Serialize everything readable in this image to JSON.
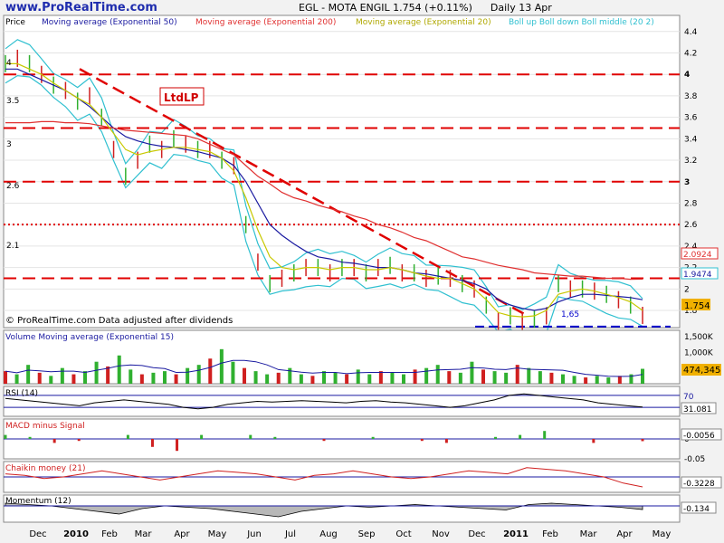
{
  "header": {
    "site": "www.ProRealTime.com",
    "title": "EGL - MOTA ENGIL   1.754 (+0.11%)",
    "period": "Daily  13 Apr"
  },
  "main_panel": {
    "legend": [
      {
        "label": "Price",
        "color": "#000000"
      },
      {
        "label": "Moving average (Exponential 50)",
        "color": "#1a1aa0"
      },
      {
        "label": "Moving average (Exponential 200)",
        "color": "#e03030"
      },
      {
        "label": "Moving average (Exponential 20)",
        "color": "#c8c800"
      },
      {
        "label": "Boll up Boll down Boll middle (20 2)",
        "color": "#30c0d0"
      }
    ],
    "watermark": "© ProRealTime.com  Data adjusted after dividends",
    "annotation": "LtdLP",
    "support_label": "1,65",
    "left_levels": [
      "4",
      "3.5",
      "3",
      "2.6",
      "2.1"
    ],
    "right_badges": {
      "ema200": "2.0924",
      "boll_up": "1.9474",
      "price": "1.754"
    }
  },
  "volume_panel": {
    "label": "Volume  Moving average (Exponential 15)",
    "badge": "474,345"
  },
  "rsi_panel": {
    "label": "RSI (14)",
    "level": "70",
    "badge": "31.081"
  },
  "macd_panel": {
    "label": "MACD minus Signal",
    "badge": "-0.0056"
  },
  "chaikin_panel": {
    "label": "Chaikin money (21)",
    "badge": "-0.3228"
  },
  "momentum_panel": {
    "label": "Momentum (12)",
    "badge": "-0.134"
  },
  "colors": {
    "background": "#f2f2f2",
    "level_line": "#e00000",
    "ema50": "#1a1aa0",
    "ema200": "#e03030",
    "ema20": "#c8c800",
    "bollinger": "#30c0d0",
    "support": "#0000cc",
    "volume_up": "#30b030",
    "volume_down": "#d02020",
    "price_badge": "#f0b000"
  },
  "chart_data": [
    {
      "type": "line",
      "name": "price",
      "ylim": [
        1.64,
        4.55
      ],
      "yticks": [
        "4.4",
        "4.2",
        "4",
        "3.8",
        "3.6",
        "3.4",
        "3.2",
        "3",
        "2.8",
        "2.6",
        "2.4",
        "2.2",
        "2",
        "1.8"
      ],
      "xticks": [
        "Dec",
        "2010",
        "Feb",
        "Mar",
        "Apr",
        "May",
        "Jun",
        "Jul",
        "Aug",
        "Sep",
        "Oct",
        "Nov",
        "Dec",
        "2011",
        "Feb",
        "Mar",
        "Apr",
        "May"
      ],
      "horizontal_levels": [
        4.0,
        3.5,
        3.0,
        2.6,
        2.1
      ],
      "support_level": 1.65,
      "trendline": [
        {
          "date": "Jan 2010",
          "value": 4.05
        },
        {
          "date": "Dec 2010",
          "value": 1.75
        }
      ],
      "series": [
        {
          "name": "Price",
          "values": [
            4.1,
            4.15,
            4.1,
            4.0,
            3.9,
            3.85,
            3.75,
            3.8,
            3.6,
            3.3,
            3.05,
            3.2,
            3.35,
            3.3,
            3.4,
            3.35,
            3.3,
            3.3,
            3.2,
            3.15,
            2.6,
            2.25,
            2.05,
            2.1,
            2.15,
            2.2,
            2.2,
            2.15,
            2.2,
            2.2,
            2.15,
            2.2,
            2.22,
            2.15,
            2.15,
            2.1,
            2.12,
            2.1,
            2.05,
            2.0,
            1.85,
            1.7,
            1.75,
            1.7,
            1.72,
            1.75,
            2.05,
            2.0,
            2.0,
            1.98,
            1.95,
            1.9,
            1.85,
            1.754
          ]
        },
        {
          "name": "Moving average (Exponential 50)",
          "values": [
            4.05,
            4.05,
            4.0,
            3.95,
            3.9,
            3.85,
            3.78,
            3.7,
            3.6,
            3.5,
            3.42,
            3.38,
            3.35,
            3.33,
            3.32,
            3.3,
            3.28,
            3.25,
            3.22,
            3.15,
            3.0,
            2.8,
            2.6,
            2.5,
            2.42,
            2.35,
            2.3,
            2.28,
            2.25,
            2.24,
            2.22,
            2.2,
            2.2,
            2.18,
            2.15,
            2.14,
            2.12,
            2.1,
            2.08,
            2.05,
            2.0,
            1.9,
            1.85,
            1.82,
            1.8,
            1.82,
            1.88,
            1.92,
            1.95,
            1.95,
            1.94,
            1.93,
            1.92,
            1.9
          ]
        },
        {
          "name": "Moving average (Exponential 200)",
          "values": [
            3.55,
            3.55,
            3.55,
            3.56,
            3.56,
            3.55,
            3.55,
            3.54,
            3.52,
            3.5,
            3.48,
            3.47,
            3.46,
            3.45,
            3.44,
            3.43,
            3.4,
            3.35,
            3.3,
            3.25,
            3.15,
            3.05,
            2.98,
            2.9,
            2.85,
            2.82,
            2.78,
            2.75,
            2.72,
            2.68,
            2.65,
            2.6,
            2.57,
            2.53,
            2.48,
            2.45,
            2.4,
            2.35,
            2.3,
            2.28,
            2.25,
            2.22,
            2.2,
            2.18,
            2.15,
            2.14,
            2.13,
            2.12,
            2.12,
            2.11,
            2.1,
            2.1,
            2.09,
            2.0924
          ]
        },
        {
          "name": "Moving average (Exponential 20)",
          "values": [
            4.1,
            4.1,
            4.05,
            4.0,
            3.92,
            3.85,
            3.78,
            3.72,
            3.6,
            3.45,
            3.3,
            3.25,
            3.28,
            3.3,
            3.32,
            3.32,
            3.3,
            3.28,
            3.22,
            3.1,
            2.85,
            2.55,
            2.3,
            2.2,
            2.18,
            2.2,
            2.2,
            2.18,
            2.2,
            2.2,
            2.18,
            2.18,
            2.2,
            2.18,
            2.15,
            2.12,
            2.1,
            2.1,
            2.05,
            2.0,
            1.9,
            1.78,
            1.75,
            1.74,
            1.75,
            1.8,
            1.95,
            1.98,
            2.0,
            1.98,
            1.95,
            1.92,
            1.88,
            1.8
          ]
        }
      ]
    },
    {
      "type": "bar",
      "name": "volume",
      "ylim": [
        0,
        1700000
      ],
      "yticks": [
        "1,500K",
        "1,000K",
        "500K"
      ],
      "values": [
        400,
        300,
        600,
        350,
        250,
        500,
        300,
        400,
        700,
        550,
        900,
        450,
        300,
        350,
        400,
        300,
        500,
        600,
        800,
        1100,
        700,
        500,
        400,
        300,
        350,
        500,
        300,
        250,
        400,
        350,
        300,
        450,
        300,
        400,
        350,
        300,
        450,
        500,
        600,
        400,
        350,
        700,
        450,
        400,
        350,
        600,
        500,
        400,
        350,
        300,
        250,
        200,
        250,
        200,
        250,
        300,
        474.345
      ]
    },
    {
      "type": "line",
      "name": "RSI (14)",
      "ylim": [
        0,
        100
      ],
      "levels": [
        70,
        30
      ],
      "values": [
        60,
        55,
        50,
        45,
        40,
        35,
        45,
        50,
        55,
        50,
        45,
        40,
        30,
        25,
        30,
        40,
        45,
        50,
        48,
        50,
        52,
        50,
        48,
        45,
        50,
        52,
        48,
        45,
        40,
        35,
        30,
        35,
        45,
        55,
        70,
        75,
        70,
        65,
        60,
        55,
        45,
        40,
        35,
        31.081
      ]
    },
    {
      "type": "line",
      "name": "MACD minus Signal",
      "ylim": [
        -0.05,
        0.05
      ],
      "yticks": [
        "0",
        "-0.05"
      ],
      "values": [
        0.01,
        0.005,
        -0.01,
        -0.005,
        0.0,
        0.01,
        -0.02,
        -0.03,
        0.01,
        0.0,
        0.01,
        0.005,
        0.0,
        -0.005,
        0.0,
        0.005,
        0.0,
        -0.005,
        -0.01,
        0.0,
        0.005,
        0.01,
        0.02,
        0.0,
        -0.01,
        0.0,
        -0.0056
      ]
    },
    {
      "type": "line",
      "name": "Chaikin money (21)",
      "ylim": [
        -0.5,
        0.5
      ],
      "levels": [
        0
      ],
      "values": [
        0.1,
        0.05,
        -0.05,
        0.0,
        0.1,
        0.2,
        0.1,
        0.0,
        -0.1,
        0.0,
        0.1,
        0.2,
        0.15,
        0.1,
        0.0,
        -0.1,
        0.05,
        0.1,
        0.2,
        0.1,
        0.0,
        -0.05,
        0.0,
        0.1,
        0.2,
        0.15,
        0.1,
        0.3,
        0.25,
        0.2,
        0.1,
        0.0,
        -0.2,
        -0.3228
      ]
    },
    {
      "type": "area",
      "name": "Momentum (12)",
      "ylim": [
        -0.6,
        0.4
      ],
      "levels": [
        0
      ],
      "values": [
        0.1,
        0.05,
        0.0,
        -0.1,
        -0.2,
        -0.3,
        -0.1,
        0.0,
        -0.05,
        -0.1,
        -0.2,
        -0.3,
        -0.4,
        -0.2,
        -0.1,
        0.0,
        -0.05,
        0.0,
        0.05,
        0.0,
        -0.05,
        -0.1,
        -0.15,
        0.05,
        0.1,
        0.05,
        0.0,
        -0.05,
        -0.134
      ]
    }
  ]
}
